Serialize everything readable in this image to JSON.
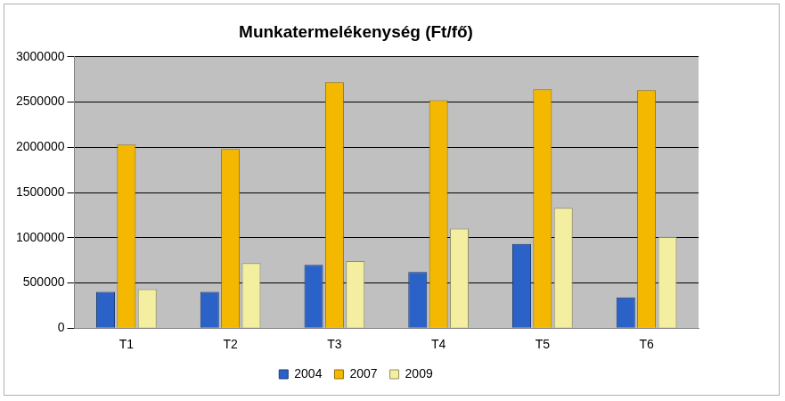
{
  "chart_data": {
    "type": "bar",
    "title": "Munkatermelékenység (Ft/fő)",
    "categories": [
      "T1",
      "T2",
      "T3",
      "T4",
      "T5",
      "T6"
    ],
    "series": [
      {
        "name": "2004",
        "color": "#2a62c8",
        "values": [
          400000,
          400000,
          700000,
          620000,
          930000,
          340000
        ]
      },
      {
        "name": "2007",
        "color": "#f5b800",
        "values": [
          2030000,
          1980000,
          2720000,
          2520000,
          2640000,
          2630000
        ]
      },
      {
        "name": "2009",
        "color": "#f3eea0",
        "values": [
          430000,
          720000,
          740000,
          1100000,
          1330000,
          1010000
        ]
      }
    ],
    "ylim": [
      0,
      3000000
    ],
    "yticks": [
      0,
      500000,
      1000000,
      1500000,
      2000000,
      2500000,
      3000000
    ],
    "grid": true,
    "legend": "bottom"
  }
}
